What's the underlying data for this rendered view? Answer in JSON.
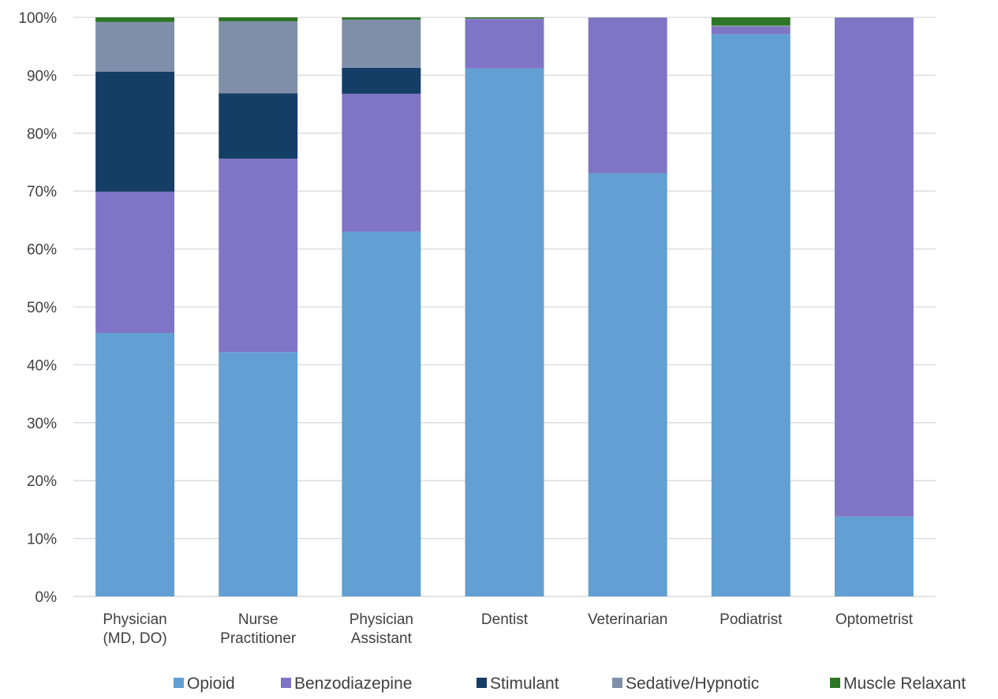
{
  "chart_data": {
    "type": "bar",
    "stacked": true,
    "percent_stacked": true,
    "title": "",
    "xlabel": "",
    "ylabel": "",
    "ylim": [
      0,
      100
    ],
    "y_ticks": [
      "0%",
      "10%",
      "20%",
      "30%",
      "40%",
      "50%",
      "60%",
      "70%",
      "80%",
      "90%",
      "100%"
    ],
    "grid": "horizontal",
    "legend": "bottom",
    "categories": [
      [
        "Physician",
        "(MD, DO)"
      ],
      [
        "Nurse",
        "Practitioner"
      ],
      [
        "Physician",
        "Assistant"
      ],
      [
        "Dentist"
      ],
      [
        "Veterinarian"
      ],
      [
        "Podiatrist"
      ],
      [
        "Optometrist"
      ]
    ],
    "series": [
      {
        "name": "Opioid",
        "color": "#629FD2",
        "values": [
          45.5,
          42.2,
          63.0,
          91.2,
          73.1,
          97.1,
          13.8
        ]
      },
      {
        "name": "Benzodiazepine",
        "color": "#8074C6",
        "values": [
          24.4,
          33.4,
          23.8,
          8.5,
          26.8,
          1.2,
          86.1
        ]
      },
      {
        "name": "Stimulant",
        "color": "#153E66",
        "values": [
          20.7,
          11.3,
          4.5,
          0.0,
          0.0,
          0.0,
          0.0
        ]
      },
      {
        "name": "Sedative/Hypnotic",
        "color": "#7F8FA9",
        "values": [
          8.6,
          12.4,
          8.3,
          0.1,
          0.1,
          0.3,
          0.1
        ]
      },
      {
        "name": "Muscle Relaxant",
        "color": "#2E7627",
        "values": [
          0.8,
          0.7,
          0.4,
          0.2,
          0.0,
          1.4,
          0.0
        ]
      }
    ]
  }
}
